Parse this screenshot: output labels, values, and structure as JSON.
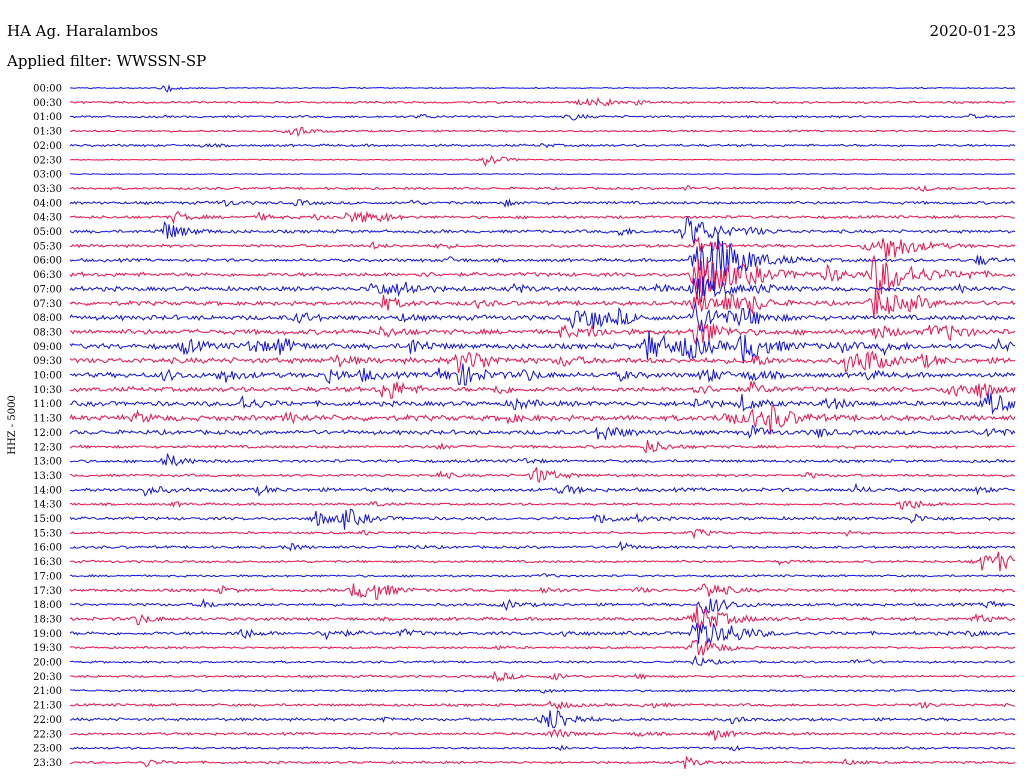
{
  "header": {
    "station": "HA Ag. Haralambos",
    "date": "2020-01-23",
    "filter": "Applied filter: WWSSN-SP"
  },
  "chart_data": {
    "type": "line",
    "ylabel": "HHZ - 5000",
    "colors": [
      "#1010e8",
      "#f0104a"
    ],
    "rows": [
      {
        "label": "00:00",
        "level": 0.5,
        "events": [
          [
            0.1,
            2.2
          ]
        ]
      },
      {
        "label": "00:30",
        "level": 0.9,
        "events": [
          [
            0.54,
            2.4
          ],
          [
            0.56,
            2.0
          ],
          [
            0.6,
            1.2
          ]
        ]
      },
      {
        "label": "01:00",
        "level": 0.9,
        "events": [
          [
            0.37,
            1.4
          ],
          [
            0.53,
            1.8
          ],
          [
            0.95,
            1.2
          ]
        ]
      },
      {
        "label": "01:30",
        "level": 0.8,
        "events": [
          [
            0.24,
            2.4
          ],
          [
            0.23,
            1.6
          ]
        ]
      },
      {
        "label": "02:00",
        "level": 1.0,
        "events": [
          [
            0.14,
            1.0
          ],
          [
            0.5,
            1.0
          ]
        ]
      },
      {
        "label": "02:30",
        "level": 0.5,
        "events": [
          [
            0.44,
            3.5
          ]
        ]
      },
      {
        "label": "03:00",
        "level": 0.4,
        "events": []
      },
      {
        "label": "03:30",
        "level": 1.0,
        "events": [
          [
            0.65,
            1.4
          ],
          [
            0.9,
            1.4
          ]
        ]
      },
      {
        "label": "04:00",
        "level": 1.2,
        "events": [
          [
            0.16,
            2.0
          ],
          [
            0.24,
            1.6
          ],
          [
            0.36,
            1.3
          ],
          [
            0.46,
            1.4
          ]
        ]
      },
      {
        "label": "04:30",
        "level": 1.2,
        "events": [
          [
            0.11,
            3.0
          ],
          [
            0.2,
            1.8
          ],
          [
            0.29,
            3.0
          ],
          [
            0.31,
            2.5
          ],
          [
            0.33,
            1.8
          ],
          [
            0.26,
            1.5
          ]
        ]
      },
      {
        "label": "05:00",
        "level": 1.3,
        "events": [
          [
            0.1,
            5.0
          ],
          [
            0.58,
            2.2
          ],
          [
            0.65,
            9.0
          ],
          [
            0.72,
            1.5
          ]
        ]
      },
      {
        "label": "05:30",
        "level": 1.2,
        "events": [
          [
            0.32,
            1.4
          ],
          [
            0.39,
            1.5
          ],
          [
            0.66,
            5.0
          ],
          [
            0.84,
            2.4
          ],
          [
            0.86,
            8.5
          ]
        ]
      },
      {
        "label": "06:00",
        "level": 1.3,
        "events": [
          [
            0.4,
            1.5
          ],
          [
            0.66,
            12.0
          ],
          [
            0.68,
            9.0
          ],
          [
            0.96,
            2.8
          ]
        ]
      },
      {
        "label": "06:30",
        "level": 1.7,
        "events": [
          [
            0.37,
            1.2
          ],
          [
            0.66,
            14.0
          ],
          [
            0.8,
            4.0
          ],
          [
            0.85,
            12.0
          ],
          [
            0.72,
            2.0
          ],
          [
            0.95,
            1.5
          ]
        ]
      },
      {
        "label": "07:00",
        "level": 1.8,
        "events": [
          [
            0.32,
            5.0
          ],
          [
            0.35,
            4.0
          ],
          [
            0.47,
            2.5
          ],
          [
            0.62,
            2.5
          ],
          [
            0.66,
            8.0
          ],
          [
            0.73,
            2.5
          ],
          [
            0.94,
            1.6
          ]
        ]
      },
      {
        "label": "07:30",
        "level": 1.8,
        "events": [
          [
            0.33,
            4.0
          ],
          [
            0.43,
            1.8
          ],
          [
            0.66,
            6.0
          ],
          [
            0.69,
            5.0
          ],
          [
            0.72,
            3.5
          ],
          [
            0.89,
            3.0
          ],
          [
            0.85,
            8.0
          ]
        ]
      },
      {
        "label": "08:00",
        "level": 2.0,
        "events": [
          [
            0.24,
            3.0
          ],
          [
            0.35,
            1.8
          ],
          [
            0.53,
            4.0
          ],
          [
            0.55,
            5.0
          ],
          [
            0.58,
            3.0
          ],
          [
            0.66,
            9.0
          ],
          [
            0.71,
            4.5
          ]
        ]
      },
      {
        "label": "08:30",
        "level": 2.1,
        "events": [
          [
            0.33,
            3.0
          ],
          [
            0.52,
            3.0
          ],
          [
            0.55,
            2.5
          ],
          [
            0.66,
            6.0
          ],
          [
            0.67,
            3.0
          ],
          [
            0.85,
            4.0
          ],
          [
            0.91,
            4.0
          ],
          [
            0.93,
            3.0
          ]
        ]
      },
      {
        "label": "09:00",
        "level": 2.2,
        "events": [
          [
            0.12,
            4.0
          ],
          [
            0.19,
            4.0
          ],
          [
            0.22,
            4.0
          ],
          [
            0.36,
            4.0
          ],
          [
            0.61,
            8.0
          ],
          [
            0.65,
            6.0
          ],
          [
            0.71,
            8.0
          ],
          [
            0.81,
            3.0
          ],
          [
            0.86,
            3.0
          ],
          [
            0.98,
            3.0
          ]
        ]
      },
      {
        "label": "09:30",
        "level": 2.3,
        "events": [
          [
            0.28,
            3.0
          ],
          [
            0.41,
            5.5
          ],
          [
            0.43,
            3.0
          ],
          [
            0.52,
            3.0
          ],
          [
            0.72,
            3.0
          ],
          [
            0.82,
            5.0
          ],
          [
            0.84,
            5.0
          ],
          [
            0.9,
            3.0
          ]
        ]
      },
      {
        "label": "10:00",
        "level": 2.0,
        "events": [
          [
            0.1,
            3.0
          ],
          [
            0.16,
            4.0
          ],
          [
            0.27,
            4.0
          ],
          [
            0.31,
            3.0
          ],
          [
            0.39,
            3.0
          ],
          [
            0.41,
            6.0
          ],
          [
            0.48,
            3.0
          ],
          [
            0.58,
            2.5
          ],
          [
            0.67,
            4.0
          ],
          [
            0.72,
            3.0
          ],
          [
            0.84,
            2.5
          ]
        ]
      },
      {
        "label": "10:30",
        "level": 2.0,
        "events": [
          [
            0.33,
            4.0
          ],
          [
            0.34,
            3.0
          ],
          [
            0.45,
            2.5
          ],
          [
            0.66,
            3.0
          ],
          [
            0.72,
            3.0
          ],
          [
            0.93,
            5.0
          ],
          [
            0.96,
            3.5
          ]
        ]
      },
      {
        "label": "11:00",
        "level": 2.0,
        "events": [
          [
            0.18,
            4.0
          ],
          [
            0.47,
            3.0
          ],
          [
            0.66,
            3.0
          ],
          [
            0.71,
            4.0
          ],
          [
            0.8,
            3.5
          ],
          [
            0.97,
            6.0
          ]
        ]
      },
      {
        "label": "11:30",
        "level": 2.3,
        "events": [
          [
            0.07,
            2.5
          ],
          [
            0.23,
            2.5
          ],
          [
            0.46,
            2.5
          ],
          [
            0.69,
            4.0
          ],
          [
            0.72,
            4.0
          ],
          [
            0.74,
            6.0
          ]
        ]
      },
      {
        "label": "12:00",
        "level": 1.8,
        "events": [
          [
            0.56,
            5.0
          ],
          [
            0.72,
            3.0
          ],
          [
            0.79,
            2.5
          ],
          [
            0.97,
            3.0
          ]
        ]
      },
      {
        "label": "12:30",
        "level": 1.2,
        "events": [
          [
            0.61,
            4.0
          ],
          [
            0.39,
            1.5
          ]
        ]
      },
      {
        "label": "13:00",
        "level": 1.2,
        "events": [
          [
            0.1,
            4.0
          ],
          [
            0.48,
            1.6
          ]
        ]
      },
      {
        "label": "13:30",
        "level": 1.1,
        "events": [
          [
            0.49,
            5.0
          ],
          [
            0.39,
            2.0
          ],
          [
            0.78,
            1.5
          ]
        ]
      },
      {
        "label": "14:00",
        "level": 1.5,
        "events": [
          [
            0.08,
            3.0
          ],
          [
            0.2,
            2.0
          ],
          [
            0.52,
            3.0
          ],
          [
            0.83,
            2.0
          ],
          [
            0.96,
            1.6
          ]
        ]
      },
      {
        "label": "14:30",
        "level": 1.0,
        "events": [
          [
            0.11,
            1.2
          ],
          [
            0.88,
            4.0
          ],
          [
            0.32,
            1.4
          ]
        ]
      },
      {
        "label": "15:00",
        "level": 1.3,
        "events": [
          [
            0.26,
            4.0
          ],
          [
            0.29,
            5.0
          ],
          [
            0.56,
            3.0
          ],
          [
            0.89,
            2.5
          ],
          [
            0.6,
            1.5
          ]
        ]
      },
      {
        "label": "15:30",
        "level": 0.9,
        "events": [
          [
            0.66,
            2.5
          ],
          [
            0.31,
            1.2
          ],
          [
            0.82,
            1.2
          ]
        ]
      },
      {
        "label": "16:00",
        "level": 1.1,
        "events": [
          [
            0.23,
            2.0
          ],
          [
            0.58,
            2.5
          ],
          [
            0.36,
            1.3
          ]
        ]
      },
      {
        "label": "16:30",
        "level": 1.0,
        "events": [
          [
            0.96,
            5.0
          ],
          [
            0.98,
            4.0
          ],
          [
            0.75,
            1.2
          ]
        ]
      },
      {
        "label": "17:00",
        "level": 0.9,
        "events": [
          [
            0.5,
            1.2
          ]
        ]
      },
      {
        "label": "17:30",
        "level": 1.2,
        "events": [
          [
            0.3,
            5.0
          ],
          [
            0.32,
            4.0
          ],
          [
            0.16,
            1.8
          ],
          [
            0.5,
            2.0
          ],
          [
            0.67,
            5.0
          ],
          [
            0.6,
            1.5
          ]
        ]
      },
      {
        "label": "18:00",
        "level": 1.2,
        "events": [
          [
            0.14,
            2.0
          ],
          [
            0.46,
            2.5
          ],
          [
            0.67,
            6.0
          ],
          [
            0.97,
            2.0
          ]
        ]
      },
      {
        "label": "18:30",
        "level": 1.4,
        "events": [
          [
            0.07,
            3.0
          ],
          [
            0.66,
            8.0
          ],
          [
            0.96,
            3.0
          ]
        ]
      },
      {
        "label": "19:00",
        "level": 1.4,
        "events": [
          [
            0.18,
            3.0
          ],
          [
            0.27,
            3.5
          ],
          [
            0.35,
            2.0
          ],
          [
            0.52,
            2.0
          ],
          [
            0.66,
            9.0
          ],
          [
            0.7,
            3.0
          ],
          [
            0.95,
            1.5
          ]
        ]
      },
      {
        "label": "19:30",
        "level": 0.9,
        "events": [
          [
            0.66,
            6.0
          ],
          [
            0.45,
            1.2
          ]
        ]
      },
      {
        "label": "20:00",
        "level": 0.9,
        "events": [
          [
            0.83,
            2.0
          ],
          [
            0.66,
            3.0
          ]
        ]
      },
      {
        "label": "20:30",
        "level": 1.0,
        "events": [
          [
            0.45,
            3.0
          ],
          [
            0.51,
            2.0
          ],
          [
            0.6,
            1.2
          ]
        ]
      },
      {
        "label": "21:00",
        "level": 0.9,
        "events": [
          [
            0.5,
            1.0
          ]
        ]
      },
      {
        "label": "21:30",
        "level": 1.1,
        "events": [
          [
            0.51,
            3.0
          ],
          [
            0.61,
            2.0
          ],
          [
            0.9,
            1.5
          ]
        ]
      },
      {
        "label": "22:00",
        "level": 1.2,
        "events": [
          [
            0.5,
            4.0
          ],
          [
            0.51,
            5.0
          ],
          [
            0.33,
            1.6
          ],
          [
            0.7,
            2.0
          ]
        ]
      },
      {
        "label": "22:30",
        "level": 1.1,
        "events": [
          [
            0.51,
            3.0
          ],
          [
            0.68,
            3.0
          ],
          [
            0.6,
            1.5
          ]
        ]
      },
      {
        "label": "23:00",
        "level": 0.9,
        "events": [
          [
            0.52,
            1.4
          ],
          [
            0.7,
            1.2
          ]
        ]
      },
      {
        "label": "23:30",
        "level": 1.0,
        "events": [
          [
            0.08,
            2.0
          ],
          [
            0.65,
            3.0
          ],
          [
            0.82,
            1.5
          ]
        ]
      }
    ]
  }
}
